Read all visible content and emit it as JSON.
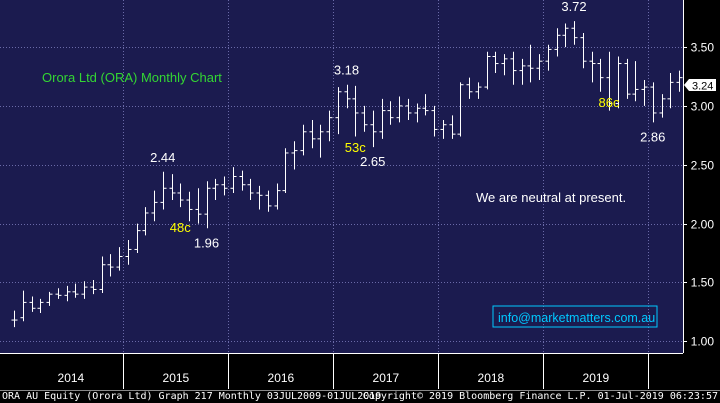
{
  "chart_data": {
    "type": "ohlc",
    "title": "Orora Ltd (ORA) Monthly Chart",
    "ylim": [
      0.9,
      3.9
    ],
    "y_ticks": [
      "1.00",
      "1.50",
      "2.00",
      "2.50",
      "3.00",
      "3.50"
    ],
    "x_labels": [
      "2014",
      "2015",
      "2016",
      "2017",
      "2018",
      "2019"
    ],
    "last_price": "3.24",
    "bars": [
      {
        "o": 1.18,
        "h": 1.26,
        "l": 1.12,
        "c": 1.18
      },
      {
        "o": 1.2,
        "h": 1.43,
        "l": 1.17,
        "c": 1.33
      },
      {
        "o": 1.33,
        "h": 1.38,
        "l": 1.25,
        "c": 1.28
      },
      {
        "o": 1.28,
        "h": 1.36,
        "l": 1.24,
        "c": 1.33
      },
      {
        "o": 1.33,
        "h": 1.42,
        "l": 1.3,
        "c": 1.4
      },
      {
        "o": 1.4,
        "h": 1.45,
        "l": 1.36,
        "c": 1.39
      },
      {
        "o": 1.39,
        "h": 1.47,
        "l": 1.34,
        "c": 1.42
      },
      {
        "o": 1.42,
        "h": 1.49,
        "l": 1.37,
        "c": 1.4
      },
      {
        "o": 1.4,
        "h": 1.51,
        "l": 1.36,
        "c": 1.46
      },
      {
        "o": 1.46,
        "h": 1.52,
        "l": 1.4,
        "c": 1.44
      },
      {
        "o": 1.44,
        "h": 1.72,
        "l": 1.41,
        "c": 1.65
      },
      {
        "o": 1.65,
        "h": 1.74,
        "l": 1.55,
        "c": 1.63
      },
      {
        "o": 1.63,
        "h": 1.8,
        "l": 1.6,
        "c": 1.72
      },
      {
        "o": 1.72,
        "h": 1.86,
        "l": 1.65,
        "c": 1.78
      },
      {
        "o": 1.78,
        "h": 2.0,
        "l": 1.75,
        "c": 1.94
      },
      {
        "o": 1.94,
        "h": 2.14,
        "l": 1.9,
        "c": 2.09
      },
      {
        "o": 2.09,
        "h": 2.28,
        "l": 2.02,
        "c": 2.18
      },
      {
        "o": 2.18,
        "h": 2.44,
        "l": 2.12,
        "c": 2.3
      },
      {
        "o": 2.3,
        "h": 2.42,
        "l": 2.2,
        "c": 2.26
      },
      {
        "o": 2.26,
        "h": 2.34,
        "l": 2.14,
        "c": 2.2
      },
      {
        "o": 2.2,
        "h": 2.27,
        "l": 2.02,
        "c": 2.12
      },
      {
        "o": 2.12,
        "h": 2.3,
        "l": 2.0,
        "c": 2.08
      },
      {
        "o": 2.08,
        "h": 2.36,
        "l": 1.96,
        "c": 2.3
      },
      {
        "o": 2.3,
        "h": 2.38,
        "l": 2.2,
        "c": 2.33
      },
      {
        "o": 2.33,
        "h": 2.4,
        "l": 2.24,
        "c": 2.3
      },
      {
        "o": 2.3,
        "h": 2.48,
        "l": 2.26,
        "c": 2.4
      },
      {
        "o": 2.4,
        "h": 2.45,
        "l": 2.28,
        "c": 2.33
      },
      {
        "o": 2.33,
        "h": 2.38,
        "l": 2.2,
        "c": 2.26
      },
      {
        "o": 2.26,
        "h": 2.32,
        "l": 2.12,
        "c": 2.24
      },
      {
        "o": 2.24,
        "h": 2.28,
        "l": 2.1,
        "c": 2.15
      },
      {
        "o": 2.15,
        "h": 2.34,
        "l": 2.12,
        "c": 2.28
      },
      {
        "o": 2.28,
        "h": 2.64,
        "l": 2.26,
        "c": 2.6
      },
      {
        "o": 2.6,
        "h": 2.7,
        "l": 2.46,
        "c": 2.62
      },
      {
        "o": 2.62,
        "h": 2.84,
        "l": 2.58,
        "c": 2.78
      },
      {
        "o": 2.78,
        "h": 2.88,
        "l": 2.64,
        "c": 2.72
      },
      {
        "o": 2.72,
        "h": 2.84,
        "l": 2.56,
        "c": 2.78
      },
      {
        "o": 2.78,
        "h": 2.96,
        "l": 2.7,
        "c": 2.9
      },
      {
        "o": 2.9,
        "h": 3.16,
        "l": 2.76,
        "c": 3.12
      },
      {
        "o": 3.12,
        "h": 3.18,
        "l": 2.98,
        "c": 3.06
      },
      {
        "o": 3.06,
        "h": 3.17,
        "l": 2.74,
        "c": 2.94
      },
      {
        "o": 2.94,
        "h": 3.0,
        "l": 2.78,
        "c": 2.84
      },
      {
        "o": 2.84,
        "h": 2.96,
        "l": 2.65,
        "c": 2.78
      },
      {
        "o": 2.78,
        "h": 3.06,
        "l": 2.72,
        "c": 2.96
      },
      {
        "o": 2.96,
        "h": 3.04,
        "l": 2.84,
        "c": 2.9
      },
      {
        "o": 2.9,
        "h": 3.08,
        "l": 2.86,
        "c": 3.0
      },
      {
        "o": 3.0,
        "h": 3.06,
        "l": 2.88,
        "c": 2.94
      },
      {
        "o": 2.94,
        "h": 3.02,
        "l": 2.86,
        "c": 2.98
      },
      {
        "o": 2.98,
        "h": 3.1,
        "l": 2.92,
        "c": 2.96
      },
      {
        "o": 2.96,
        "h": 3.0,
        "l": 2.74,
        "c": 2.8
      },
      {
        "o": 2.8,
        "h": 2.88,
        "l": 2.72,
        "c": 2.84
      },
      {
        "o": 2.84,
        "h": 2.92,
        "l": 2.72,
        "c": 2.76
      },
      {
        "o": 2.76,
        "h": 3.2,
        "l": 2.74,
        "c": 3.18
      },
      {
        "o": 3.18,
        "h": 3.24,
        "l": 3.06,
        "c": 3.12
      },
      {
        "o": 3.12,
        "h": 3.2,
        "l": 3.06,
        "c": 3.16
      },
      {
        "o": 3.16,
        "h": 3.46,
        "l": 3.14,
        "c": 3.42
      },
      {
        "o": 3.42,
        "h": 3.46,
        "l": 3.28,
        "c": 3.36
      },
      {
        "o": 3.36,
        "h": 3.44,
        "l": 3.26,
        "c": 3.4
      },
      {
        "o": 3.4,
        "h": 3.46,
        "l": 3.18,
        "c": 3.3
      },
      {
        "o": 3.3,
        "h": 3.4,
        "l": 3.18,
        "c": 3.34
      },
      {
        "o": 3.34,
        "h": 3.52,
        "l": 3.2,
        "c": 3.32
      },
      {
        "o": 3.32,
        "h": 3.44,
        "l": 3.22,
        "c": 3.38
      },
      {
        "o": 3.38,
        "h": 3.52,
        "l": 3.3,
        "c": 3.48
      },
      {
        "o": 3.48,
        "h": 3.66,
        "l": 3.42,
        "c": 3.6
      },
      {
        "o": 3.6,
        "h": 3.7,
        "l": 3.5,
        "c": 3.66
      },
      {
        "o": 3.66,
        "h": 3.72,
        "l": 3.52,
        "c": 3.58
      },
      {
        "o": 3.58,
        "h": 3.62,
        "l": 3.32,
        "c": 3.38
      },
      {
        "o": 3.38,
        "h": 3.46,
        "l": 3.2,
        "c": 3.36
      },
      {
        "o": 3.36,
        "h": 3.4,
        "l": 3.12,
        "c": 3.24
      },
      {
        "o": 3.24,
        "h": 3.46,
        "l": 2.96,
        "c": 3.02
      },
      {
        "o": 3.02,
        "h": 3.42,
        "l": 2.98,
        "c": 3.36
      },
      {
        "o": 3.36,
        "h": 3.4,
        "l": 3.06,
        "c": 3.1
      },
      {
        "o": 3.1,
        "h": 3.38,
        "l": 3.04,
        "c": 3.14
      },
      {
        "o": 3.14,
        "h": 3.22,
        "l": 3.0,
        "c": 3.16
      },
      {
        "o": 3.16,
        "h": 3.2,
        "l": 2.86,
        "c": 2.94
      },
      {
        "o": 2.94,
        "h": 3.1,
        "l": 2.9,
        "c": 3.06
      },
      {
        "o": 3.06,
        "h": 3.28,
        "l": 2.98,
        "c": 3.2
      },
      {
        "o": 3.2,
        "h": 3.3,
        "l": 3.12,
        "c": 3.24
      }
    ],
    "price_annotations": [
      {
        "text": "2.44",
        "bar": 17,
        "y": 2.44,
        "pos": "above"
      },
      {
        "text": "1.96",
        "bar": 22,
        "y": 1.96,
        "pos": "below"
      },
      {
        "text": "3.18",
        "bar": 38,
        "y": 3.18,
        "pos": "above"
      },
      {
        "text": "2.65",
        "bar": 41,
        "y": 2.65,
        "pos": "below"
      },
      {
        "text": "3.72",
        "bar": 64,
        "y": 3.72,
        "pos": "above"
      },
      {
        "text": "2.86",
        "bar": 73,
        "y": 2.86,
        "pos": "below"
      }
    ],
    "move_annotations": [
      {
        "text": "48c",
        "bar": 19,
        "y": 1.93
      },
      {
        "text": "53c",
        "bar": 39,
        "y": 2.61
      },
      {
        "text": "86c",
        "bar": 68,
        "y": 2.99
      }
    ],
    "comment": "We are neutral at present.",
    "watermark": "info@marketmatters.com.au",
    "footer_left": "ORA AU Equity (Orora Ltd) Graph 217  Monthly 03JUL2009-01JUL2019",
    "footer_right": "Copyright© 2019 Bloomberg Finance L.P.    01-Jul-2019 06:23:57",
    "colors": {
      "plot_bg": "#1b1b4f",
      "grid": "#6a6aa8",
      "axis_bg": "#000000",
      "bar": "#ffffff",
      "title": "#33d633",
      "price_label": "#ffffff",
      "move_label": "#ffff00",
      "watermark": "#00c8ff"
    }
  }
}
